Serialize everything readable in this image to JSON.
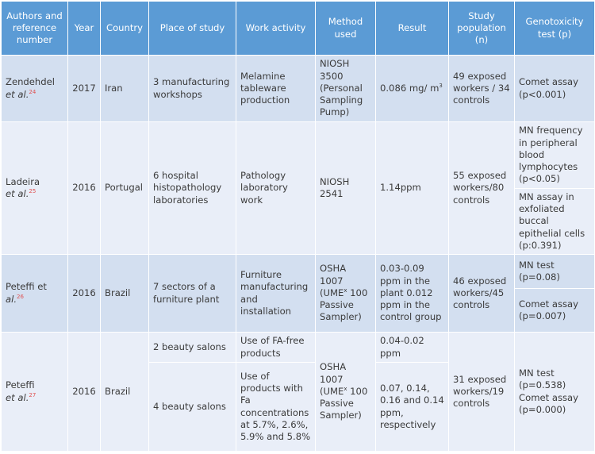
{
  "headers": {
    "authors": "Authors and reference number",
    "year": "Year",
    "country": "Country",
    "place": "Place of study",
    "activity": "Work activity",
    "method": "Method used",
    "result": "Result",
    "population": "Study population (n)",
    "genotoxicity": "Genotoxicity test (p)"
  },
  "rows": [
    {
      "author": "Zendehdel",
      "etal": "et al.",
      "ref": "24",
      "year": "2017",
      "country": "Iran",
      "place": "3 manufacturing workshops",
      "activity": "Melamine tableware production",
      "method": "NIOSH 3500 (Personal Sampling Pump)",
      "result_main": "0.086 mg/ m",
      "result_sup": "3",
      "population": "49 exposed workers / 34 controls",
      "tests": [
        "Comet assay (p<0.001)"
      ]
    },
    {
      "author": "Ladeira",
      "etal": "et al.",
      "ref": "25",
      "year": "2016",
      "country": "Portugal",
      "place": "6 hospital histopathology laboratories",
      "activity": "Pathology laboratory work",
      "method": "NIOSH 2541",
      "result": "1.14ppm",
      "population": "55 exposed workers/80 controls",
      "tests": [
        "MN frequency in peripheral blood lymphocytes (p<0.05)",
        "MN assay in exfoliated buccal epithelial cells (p:0.391)"
      ]
    },
    {
      "author": "Peteffi et",
      "etal": "al.",
      "ref": "26",
      "year": "2016",
      "country": "Brazil",
      "place": "7 sectors of a furniture plant",
      "activity": "Furniture manufacturing and installation",
      "method_pre": "OSHA 1007 (UME",
      "method_sup": "x",
      "method_post": " 100 Passive Sampler)",
      "result": "0.03-0.09 ppm in the plant 0.012 ppm in the control group",
      "population": "46 exposed workers/45 controls",
      "tests": [
        "MN test (p=0.08)",
        "Comet assay (p=0.007)"
      ]
    },
    {
      "author": "Peteffi",
      "etal": "et al.",
      "ref": "27",
      "year": "2016",
      "country": "Brazil",
      "places": [
        "2 beauty salons",
        "4 beauty salons"
      ],
      "activities": [
        "Use of FA-free products",
        "Use of products with Fa concentrations at 5.7%, 2.6%, 5.9% and 5.8%"
      ],
      "method_pre": "OSHA 1007 (UME",
      "method_sup": "x",
      "method_post": " 100 Passive Sampler)",
      "results": [
        "0.04-0.02 ppm",
        "0.07, 0.14, 0.16 and 0.14 ppm, respectively"
      ],
      "population": "31 exposed workers/19 controls",
      "tests": [
        "MN test (p=0.538) Comet assay (p=0.000)"
      ]
    }
  ]
}
